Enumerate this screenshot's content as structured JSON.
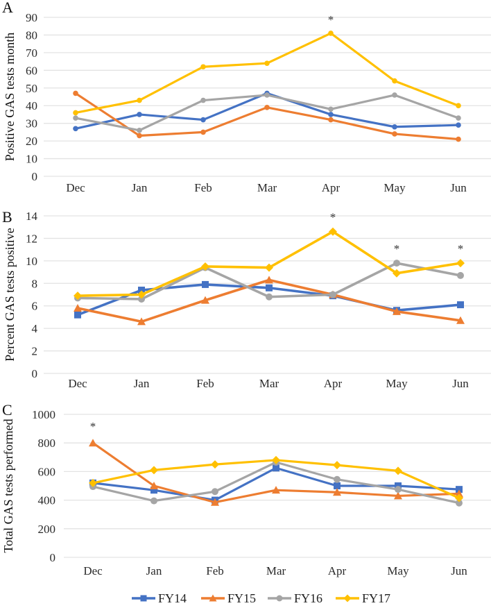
{
  "chart_data": [
    {
      "type": "line",
      "panel_label": "A",
      "title": "",
      "xlabel": "",
      "ylabel": "Positive GAS tests month",
      "categories": [
        "Dec",
        "Jan",
        "Feb",
        "Mar",
        "Apr",
        "May",
        "Jun"
      ],
      "ylim": [
        0,
        90
      ],
      "yticks": [
        0,
        10,
        20,
        30,
        40,
        50,
        60,
        70,
        80,
        90
      ],
      "grid": true,
      "marker_style": "circle",
      "series": [
        {
          "name": "FY14",
          "color": "#4472C4",
          "values": [
            27,
            35,
            32,
            47,
            35,
            28,
            29
          ]
        },
        {
          "name": "FY15",
          "color": "#ED7D31",
          "values": [
            47,
            23,
            25,
            39,
            32,
            24,
            21
          ]
        },
        {
          "name": "FY16",
          "color": "#A5A5A5",
          "values": [
            33,
            26,
            43,
            46,
            38,
            46,
            33
          ]
        },
        {
          "name": "FY17",
          "color": "#FFC000",
          "values": [
            36,
            43,
            62,
            64,
            81,
            54,
            40
          ]
        }
      ],
      "annotations": [
        {
          "text": "*",
          "category": "Apr",
          "series": "FY17"
        }
      ]
    },
    {
      "type": "line",
      "panel_label": "B",
      "title": "",
      "xlabel": "",
      "ylabel": "Percent GAS tests positive",
      "categories": [
        "Dec",
        "Jan",
        "Feb",
        "Mar",
        "Apr",
        "May",
        "Jun"
      ],
      "ylim": [
        0,
        14
      ],
      "yticks": [
        0,
        2,
        4,
        6,
        8,
        10,
        12,
        14
      ],
      "grid": true,
      "marker_style": "legend",
      "series": [
        {
          "name": "FY14",
          "color": "#4472C4",
          "marker": "square",
          "values": [
            5.2,
            7.4,
            7.9,
            7.6,
            6.9,
            5.6,
            6.1
          ]
        },
        {
          "name": "FY15",
          "color": "#ED7D31",
          "marker": "triangle",
          "values": [
            5.8,
            4.6,
            6.5,
            8.3,
            7.0,
            5.5,
            4.7
          ]
        },
        {
          "name": "FY16",
          "color": "#A5A5A5",
          "marker": "circle",
          "values": [
            6.7,
            6.6,
            9.4,
            6.8,
            7.0,
            9.8,
            8.7
          ]
        },
        {
          "name": "FY17",
          "color": "#FFC000",
          "marker": "diamond",
          "values": [
            6.9,
            7.0,
            9.5,
            9.4,
            12.6,
            8.9,
            9.8
          ]
        }
      ],
      "annotations": [
        {
          "text": "*",
          "category": "Apr",
          "series": "FY17"
        },
        {
          "text": "*",
          "category": "May",
          "series": "FY16"
        },
        {
          "text": "*",
          "category": "Jun",
          "series": "FY17"
        }
      ]
    },
    {
      "type": "line",
      "panel_label": "C",
      "title": "",
      "xlabel": "",
      "ylabel": "Total GAS tests performed",
      "categories": [
        "Dec",
        "Jan",
        "Feb",
        "Mar",
        "Apr",
        "May",
        "Jun"
      ],
      "ylim": [
        0,
        1000
      ],
      "yticks": [
        0,
        200,
        400,
        600,
        800,
        1000
      ],
      "grid": true,
      "marker_style": "legend",
      "series": [
        {
          "name": "FY14",
          "color": "#4472C4",
          "marker": "square",
          "values": [
            520,
            470,
            400,
            625,
            500,
            500,
            475
          ]
        },
        {
          "name": "FY15",
          "color": "#ED7D31",
          "marker": "triangle",
          "values": [
            800,
            500,
            385,
            470,
            455,
            430,
            445
          ]
        },
        {
          "name": "FY16",
          "color": "#A5A5A5",
          "marker": "circle",
          "values": [
            495,
            395,
            460,
            665,
            545,
            475,
            380
          ]
        },
        {
          "name": "FY17",
          "color": "#FFC000",
          "marker": "diamond",
          "values": [
            520,
            610,
            650,
            680,
            645,
            605,
            415
          ]
        }
      ],
      "annotations": [
        {
          "text": "*",
          "category": "Dec",
          "series": "FY15"
        }
      ]
    }
  ],
  "legend": {
    "placement": "bottom",
    "items": [
      {
        "label": "FY14",
        "color": "#4472C4",
        "marker": "square"
      },
      {
        "label": "FY15",
        "color": "#ED7D31",
        "marker": "triangle"
      },
      {
        "label": "FY16",
        "color": "#A5A5A5",
        "marker": "circle"
      },
      {
        "label": "FY17",
        "color": "#FFC000",
        "marker": "diamond"
      }
    ]
  }
}
